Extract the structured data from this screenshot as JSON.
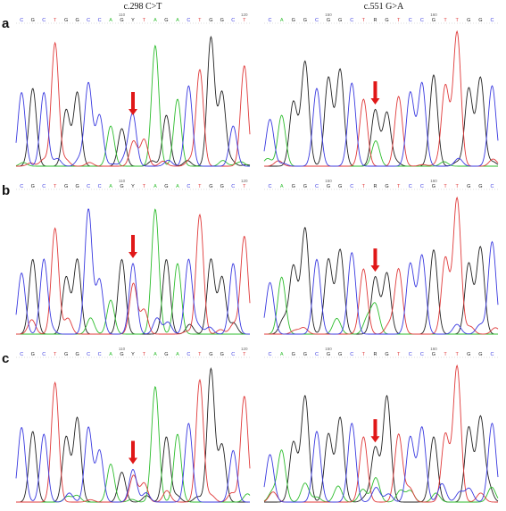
{
  "column_titles": [
    "c.298 C>T",
    "c.551 G>A"
  ],
  "row_labels": [
    "a",
    "b",
    "c"
  ],
  "panels": [
    {
      "row": "a",
      "col": 0,
      "bases": "CGCTGGCCAGYTAGACTGGCT",
      "ruler": [
        {
          "index": 9,
          "label": "110"
        },
        {
          "index": 20,
          "label": "120"
        }
      ],
      "heights": [
        0.55,
        0.58,
        0.55,
        0.92,
        0.42,
        0.55,
        0.62,
        0.38,
        0.3,
        0.28,
        0.34,
        0.2,
        0.9,
        0.38,
        0.5,
        0.6,
        0.72,
        0.96,
        0.55,
        0.3,
        0.75
      ],
      "arrow_index": 10,
      "baseline_noise": 0.02
    },
    {
      "row": "a",
      "col": 1,
      "bases": "CAGGCGGCTRGTCCGTTGGC",
      "ruler": [
        {
          "index": 5,
          "label": "150"
        },
        {
          "index": 14,
          "label": "160"
        }
      ],
      "heights": [
        0.35,
        0.38,
        0.48,
        0.78,
        0.58,
        0.66,
        0.72,
        0.62,
        0.5,
        0.42,
        0.4,
        0.52,
        0.55,
        0.62,
        0.68,
        0.6,
        1.0,
        0.58,
        0.66,
        0.6
      ],
      "arrow_index": 9,
      "baseline_noise": 0.02
    },
    {
      "row": "b",
      "col": 0,
      "bases": "CGCTGGCCAGYTAGACTGGCT",
      "ruler": [
        {
          "index": 9,
          "label": "110"
        },
        {
          "index": 20,
          "label": "120"
        }
      ],
      "heights": [
        0.45,
        0.55,
        0.55,
        0.78,
        0.42,
        0.55,
        0.92,
        0.4,
        0.25,
        0.55,
        0.52,
        0.18,
        0.92,
        0.55,
        0.52,
        0.55,
        0.88,
        0.55,
        0.42,
        0.52,
        0.72
      ],
      "arrow_index": 10,
      "baseline_noise": 0.04
    },
    {
      "row": "b",
      "col": 1,
      "bases": "CAGGCGGCTRGTCCGTTGGC",
      "ruler": [
        {
          "index": 5,
          "label": "150"
        },
        {
          "index": 14,
          "label": "160"
        }
      ],
      "heights": [
        0.38,
        0.42,
        0.5,
        0.78,
        0.55,
        0.55,
        0.62,
        0.6,
        0.48,
        0.42,
        0.45,
        0.48,
        0.52,
        0.58,
        0.62,
        0.56,
        1.0,
        0.52,
        0.64,
        0.68
      ],
      "arrow_index": 9,
      "baseline_noise": 0.04
    },
    {
      "row": "c",
      "col": 0,
      "bases": "CGCTGGCCAGYTAGACTGGCT",
      "ruler": [
        {
          "index": 9,
          "label": "110"
        },
        {
          "index": 20,
          "label": "120"
        }
      ],
      "heights": [
        0.55,
        0.52,
        0.5,
        0.88,
        0.48,
        0.62,
        0.55,
        0.38,
        0.28,
        0.22,
        0.24,
        0.14,
        0.85,
        0.48,
        0.5,
        0.58,
        0.9,
        0.98,
        0.42,
        0.38,
        0.78
      ],
      "arrow_index": 10,
      "baseline_noise": 0.03
    },
    {
      "row": "c",
      "col": 1,
      "bases": "CAGGCGGCTRGTCCGTTGGC",
      "ruler": [
        {
          "index": 5,
          "label": "150"
        },
        {
          "index": 14,
          "label": "160"
        }
      ],
      "heights": [
        0.35,
        0.38,
        0.44,
        0.78,
        0.52,
        0.5,
        0.62,
        0.58,
        0.48,
        0.4,
        0.78,
        0.5,
        0.48,
        0.55,
        0.48,
        0.5,
        1.0,
        0.55,
        0.62,
        0.58
      ],
      "arrow_index": 9,
      "baseline_noise": 0.06
    }
  ],
  "colors": {
    "A": "#2ebd2e",
    "C": "#3a3ae0",
    "G": "#222222",
    "T": "#e03a3a",
    "Y": "#222222",
    "R": "#222222",
    "arrow": "#e01818"
  }
}
